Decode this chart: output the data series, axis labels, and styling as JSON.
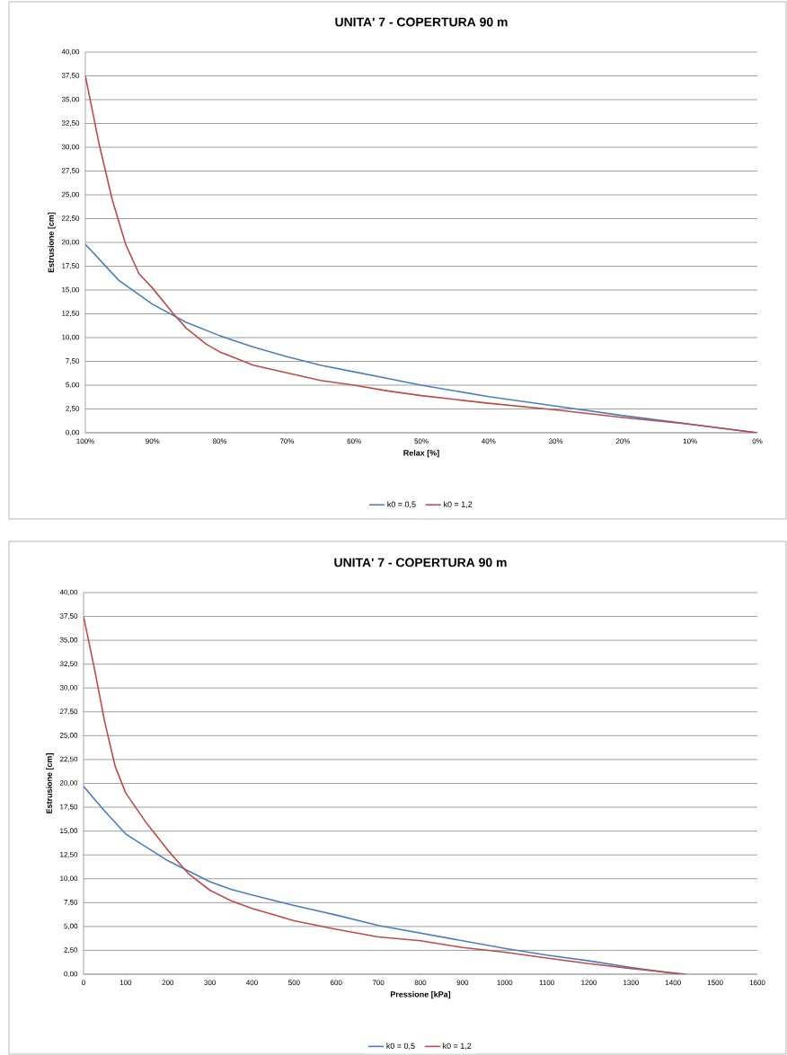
{
  "chart_data": [
    {
      "type": "line",
      "title": "UNITA' 7 - COPERTURA 90 m",
      "xlabel": "Relax [%]",
      "ylabel": "Estrusione [cm]",
      "xlim": [
        100,
        0
      ],
      "xticks": [
        {
          "value": 100,
          "label": "100%"
        },
        {
          "value": 90,
          "label": "90%"
        },
        {
          "value": 80,
          "label": "80%"
        },
        {
          "value": 70,
          "label": "70%"
        },
        {
          "value": 60,
          "label": "60%"
        },
        {
          "value": 50,
          "label": "50%"
        },
        {
          "value": 40,
          "label": "40%"
        },
        {
          "value": 30,
          "label": "30%"
        },
        {
          "value": 20,
          "label": "20%"
        },
        {
          "value": 10,
          "label": "10%"
        },
        {
          "value": 0,
          "label": "0%"
        }
      ],
      "ylim": [
        0,
        40
      ],
      "yticks": [
        {
          "value": 0,
          "label": "0,00"
        },
        {
          "value": 2.5,
          "label": "2,50"
        },
        {
          "value": 5,
          "label": "5,00"
        },
        {
          "value": 7.5,
          "label": "7,50"
        },
        {
          "value": 10,
          "label": "10,00"
        },
        {
          "value": 12.5,
          "label": "12,50"
        },
        {
          "value": 15,
          "label": "15,00"
        },
        {
          "value": 17.5,
          "label": "17,50"
        },
        {
          "value": 20,
          "label": "20,00"
        },
        {
          "value": 22.5,
          "label": "22,50"
        },
        {
          "value": 25,
          "label": "25,00"
        },
        {
          "value": 27.5,
          "label": "27,50"
        },
        {
          "value": 30,
          "label": "30,00"
        },
        {
          "value": 32.5,
          "label": "32,50"
        },
        {
          "value": 35,
          "label": "35,00"
        },
        {
          "value": 37.5,
          "label": "37,50"
        },
        {
          "value": 40,
          "label": "40,00"
        }
      ],
      "grid": "y",
      "legend": "bottom",
      "series": [
        {
          "name": "k0 = 0,5",
          "color": "#4a7ebb",
          "x": [
            100,
            95,
            90,
            85,
            80,
            75,
            70,
            65,
            60,
            55,
            50,
            40,
            30,
            20,
            10,
            0
          ],
          "values": [
            19.8,
            16.0,
            13.5,
            11.6,
            10.2,
            9.0,
            8.0,
            7.1,
            6.4,
            5.7,
            5.0,
            3.8,
            2.8,
            1.8,
            0.9,
            0
          ]
        },
        {
          "name": "k0 = 1,2",
          "color": "#be4b48",
          "x": [
            100,
            98,
            96,
            94,
            92,
            90,
            87,
            85,
            82,
            80,
            75,
            70,
            65,
            60,
            55,
            50,
            40,
            30,
            20,
            10,
            0
          ],
          "values": [
            37.5,
            30.5,
            24.5,
            19.8,
            16.7,
            15.2,
            12.6,
            11.0,
            9.3,
            8.5,
            7.1,
            6.3,
            5.5,
            5.0,
            4.4,
            3.9,
            3.1,
            2.4,
            1.6,
            0.9,
            0
          ]
        }
      ]
    },
    {
      "type": "line",
      "title": "UNITA' 7 - COPERTURA 90 m",
      "xlabel": "Pressione [kPa]",
      "ylabel": "Estrusione [cm]",
      "xlim": [
        0,
        1600
      ],
      "xticks": [
        0,
        100,
        200,
        300,
        400,
        500,
        600,
        700,
        800,
        900,
        1000,
        1100,
        1200,
        1300,
        1400,
        1500,
        1600
      ],
      "ylim": [
        0,
        40
      ],
      "yticks": [
        {
          "value": 0,
          "label": "0,00"
        },
        {
          "value": 2.5,
          "label": "2,50"
        },
        {
          "value": 5,
          "label": "5,00"
        },
        {
          "value": 7.5,
          "label": "7,50"
        },
        {
          "value": 10,
          "label": "10,00"
        },
        {
          "value": 12.5,
          "label": "12,50"
        },
        {
          "value": 15,
          "label": "15,00"
        },
        {
          "value": 17.5,
          "label": "17,50"
        },
        {
          "value": 20,
          "label": "20,00"
        },
        {
          "value": 22.5,
          "label": "22,50"
        },
        {
          "value": 25,
          "label": "25,00"
        },
        {
          "value": 27.5,
          "label": "27,50"
        },
        {
          "value": 30,
          "label": "30,00"
        },
        {
          "value": 32.5,
          "label": "32,50"
        },
        {
          "value": 35,
          "label": "35,00"
        },
        {
          "value": 37.5,
          "label": "37,50"
        },
        {
          "value": 40,
          "label": "40,00"
        }
      ],
      "grid": "y",
      "legend": "bottom",
      "series": [
        {
          "name": "k0 = 0,5",
          "color": "#4a7ebb",
          "x": [
            0,
            50,
            100,
            150,
            200,
            250,
            300,
            350,
            400,
            500,
            600,
            700,
            800,
            900,
            1000,
            1100,
            1200,
            1300,
            1415
          ],
          "values": [
            19.7,
            17.1,
            14.7,
            13.3,
            11.9,
            10.8,
            9.7,
            8.9,
            8.3,
            7.2,
            6.2,
            5.1,
            4.3,
            3.5,
            2.7,
            2.0,
            1.4,
            0.7,
            0
          ]
        },
        {
          "name": "k0 = 1,2",
          "color": "#be4b48",
          "x": [
            0,
            25,
            50,
            75,
            100,
            150,
            200,
            250,
            300,
            350,
            400,
            500,
            600,
            700,
            800,
            900,
            1000,
            1100,
            1200,
            1300,
            1430
          ],
          "values": [
            37.5,
            32.2,
            26.5,
            21.8,
            19.0,
            15.8,
            13.0,
            10.5,
            8.8,
            7.7,
            6.9,
            5.6,
            4.7,
            3.9,
            3.5,
            2.8,
            2.3,
            1.7,
            1.1,
            0.6,
            0
          ]
        }
      ]
    }
  ]
}
